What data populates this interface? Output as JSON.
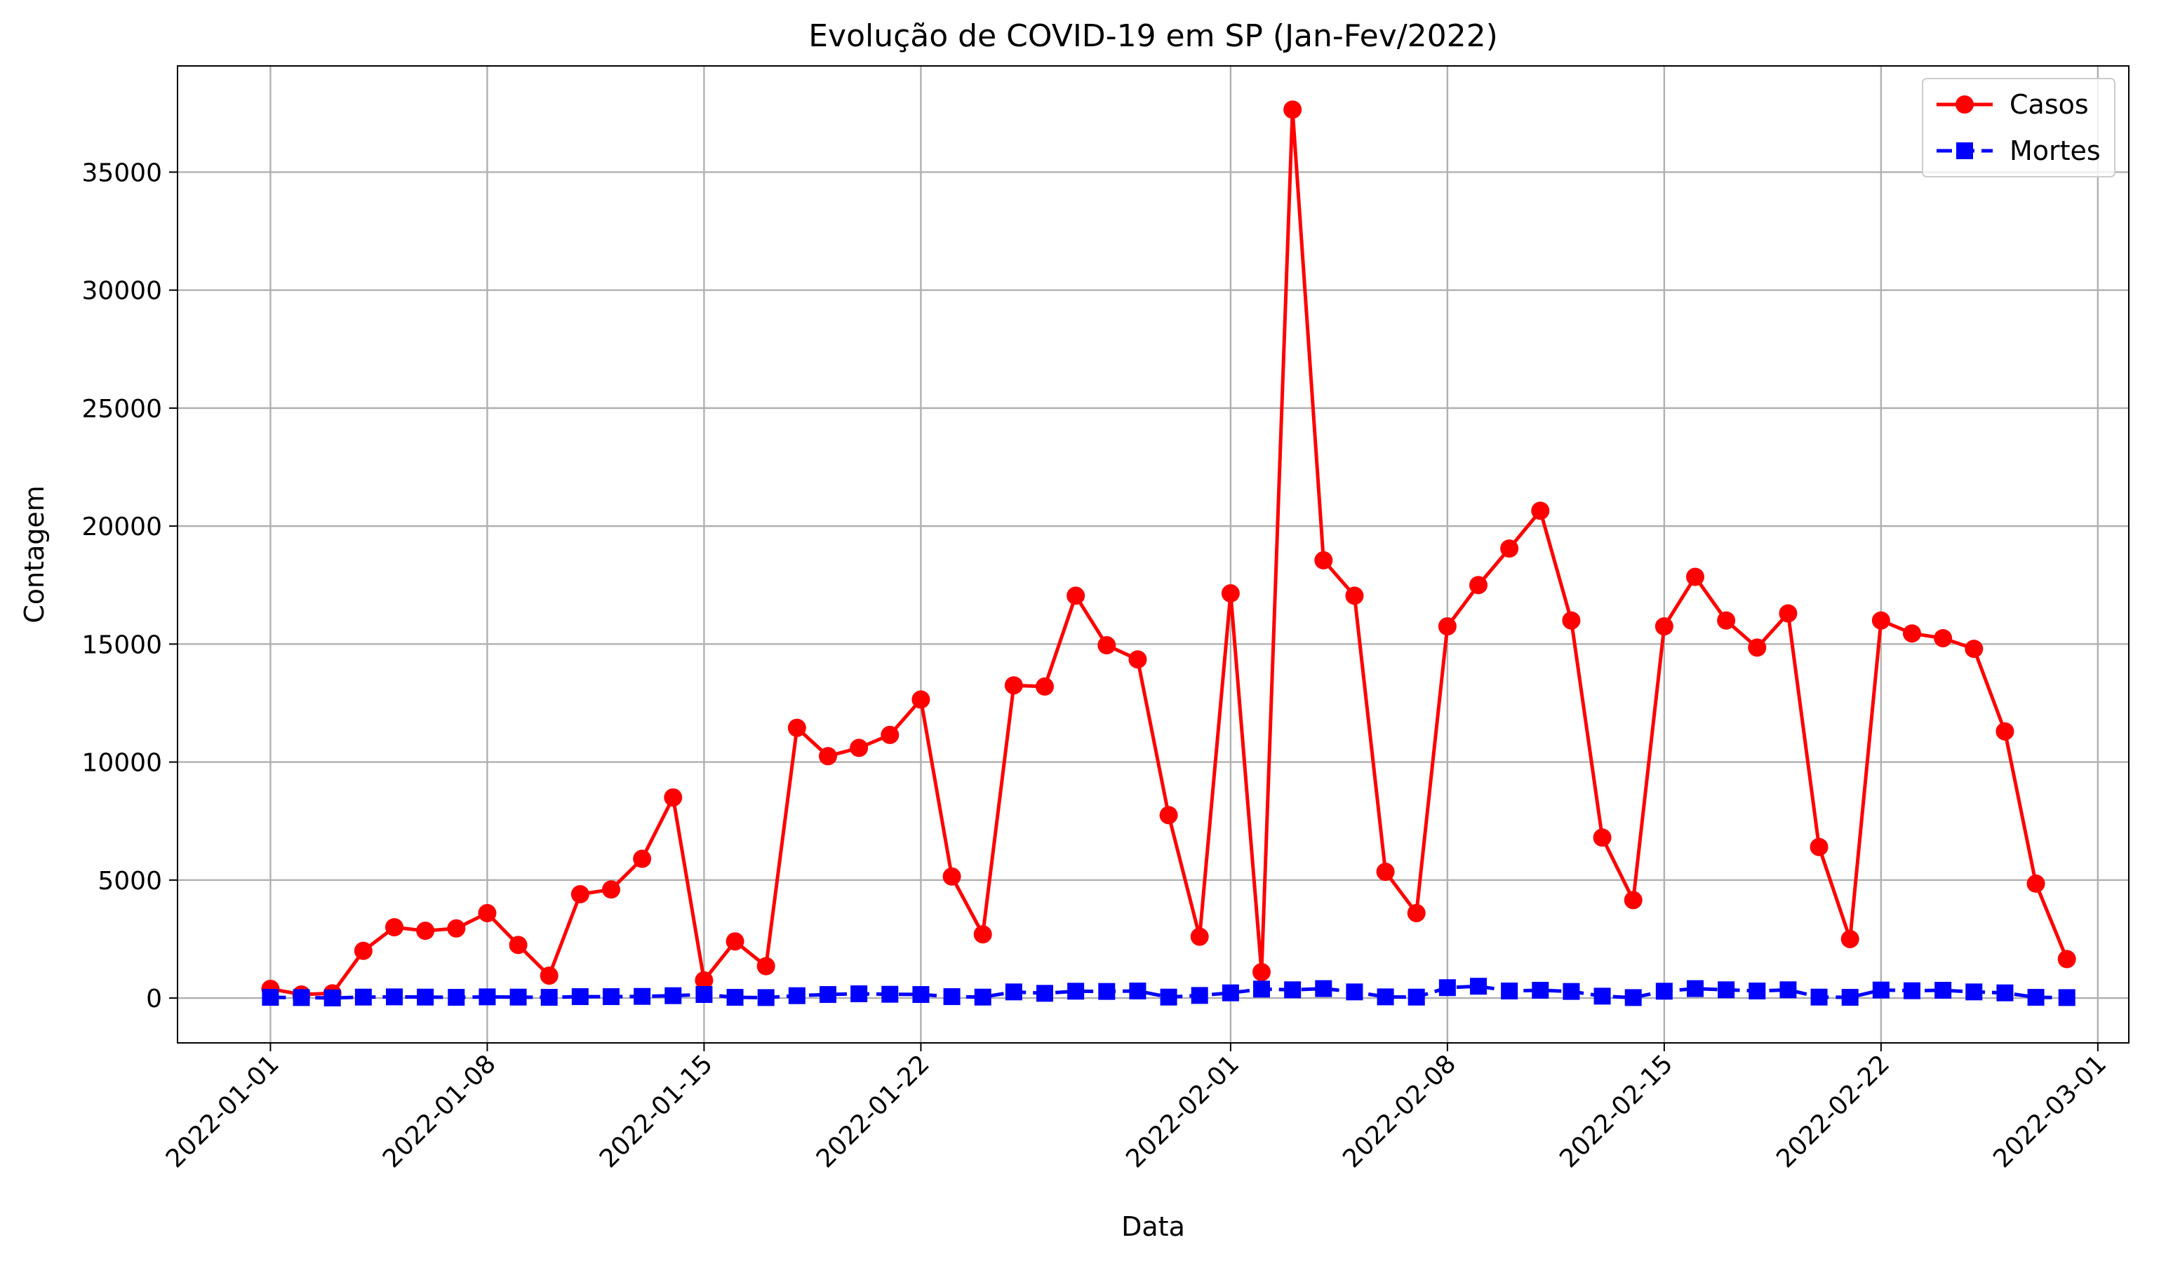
{
  "chart_data": {
    "type": "line",
    "title": "Evolução de COVID-19 em SP (Jan-Fev/2022)",
    "xlabel": "Data",
    "ylabel": "Contagem",
    "x_start": "2022-01-01",
    "xlim": [
      "2021-12-29",
      "2022-03-02"
    ],
    "ylim": [
      -1900,
      39500
    ],
    "x_ticks": [
      "2022-01-01",
      "2022-01-08",
      "2022-01-15",
      "2022-01-22",
      "2022-02-01",
      "2022-02-08",
      "2022-02-15",
      "2022-02-22",
      "2022-03-01"
    ],
    "y_ticks": [
      0,
      5000,
      10000,
      15000,
      20000,
      25000,
      30000,
      35000
    ],
    "grid": true,
    "legend_position": "top-right",
    "series": [
      {
        "name": "Casos",
        "color": "#ff0000",
        "marker": "circle",
        "line_style": "solid",
        "values": [
          390,
          150,
          200,
          2000,
          3000,
          2850,
          2950,
          3600,
          2250,
          950,
          4400,
          4600,
          5900,
          8500,
          750,
          2400,
          1350,
          11450,
          10250,
          10600,
          11150,
          12650,
          5150,
          2700,
          13250,
          13200,
          17050,
          14950,
          14350,
          7750,
          2600,
          17150,
          1100,
          37650,
          18550,
          17050,
          5350,
          3600,
          15750,
          17500,
          19050,
          20650,
          16000,
          6800,
          4150,
          15750,
          17850,
          16000,
          14850,
          16300,
          6400,
          2500,
          16000,
          15450,
          15250,
          14800,
          11300,
          4850,
          1650
        ]
      },
      {
        "name": "Mortes",
        "color": "#0000ff",
        "marker": "square",
        "line_style": "dashed",
        "values": [
          30,
          20,
          5,
          40,
          50,
          40,
          30,
          50,
          40,
          30,
          60,
          60,
          70,
          100,
          150,
          30,
          20,
          100,
          150,
          180,
          160,
          150,
          60,
          40,
          260,
          200,
          290,
          280,
          300,
          40,
          110,
          220,
          380,
          350,
          400,
          260,
          50,
          40,
          440,
          500,
          300,
          330,
          280,
          80,
          20,
          290,
          400,
          350,
          300,
          350,
          40,
          30,
          340,
          310,
          330,
          260,
          220,
          30,
          20
        ]
      }
    ]
  }
}
